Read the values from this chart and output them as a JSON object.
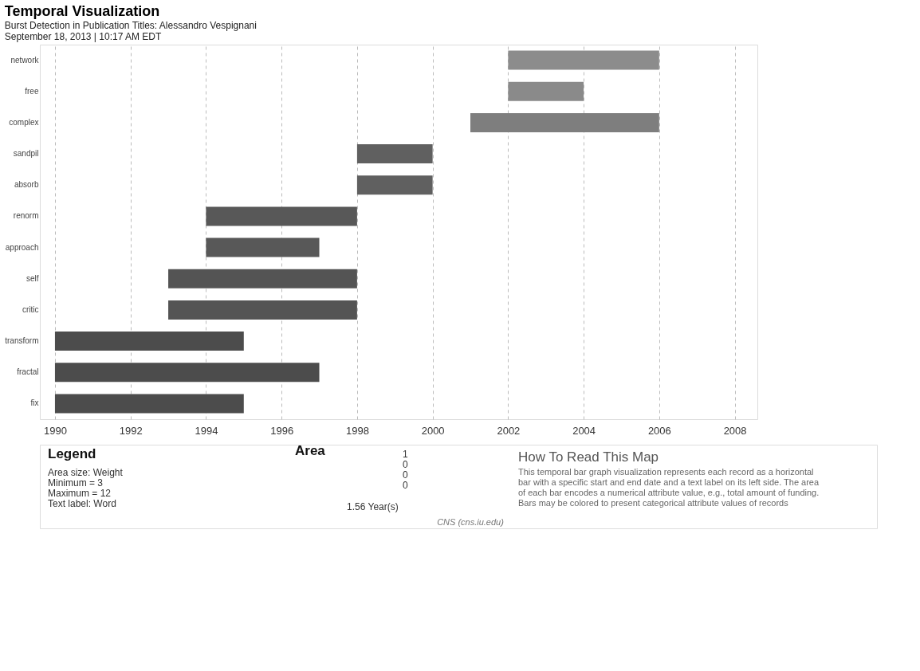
{
  "chart_data": {
    "type": "bar",
    "orientation": "horizontal",
    "title": "Temporal Visualization",
    "subtitle": "Burst Detection in Publication Titles: Alessandro Vespignani\nSeptember 18, 2013 | 10:17 AM EDT",
    "categories": [
      "network",
      "free",
      "complex",
      "sandpil",
      "absorb",
      "renorm",
      "approach",
      "self",
      "critic",
      "transform",
      "fractal",
      "fix"
    ],
    "base": [
      2002,
      2002,
      2001,
      1998,
      1998,
      1994,
      1994,
      1993,
      1993,
      1990,
      1990,
      1990
    ],
    "values": [
      4,
      2,
      5,
      2,
      2,
      4,
      3,
      5,
      5,
      5,
      7,
      5
    ],
    "colors": [
      "#8c8c8c",
      "#8a8a8a",
      "#7e7e7e",
      "#606060",
      "#606060",
      "#585858",
      "#585858",
      "#545454",
      "#545454",
      "#4c4c4c",
      "#4c4c4c",
      "#4c4c4c"
    ],
    "xlim": [
      1989.6,
      2008.6
    ],
    "xticks": [
      1990,
      1992,
      1994,
      1996,
      1998,
      2000,
      2002,
      2004,
      2006,
      2008
    ],
    "grid": "x",
    "annotations": [
      "Legend",
      "Area size: Weight",
      "Minimum = 3",
      "Maximum = 12",
      "Text label: Word",
      "Area",
      "1",
      "0",
      "0",
      "0",
      "1.56 Year(s)",
      "How To Read This Map",
      "This temporal bar graph visualization represents each record as a horizontal",
      "bar with a specific start and end date and a text label on its left side. The area",
      "of each bar encodes a numerical attribute value, e.g., total amount of funding.",
      "Bars may be colored to present categorical attribute values of records",
      "CNS (cns.iu.edu)"
    ]
  }
}
